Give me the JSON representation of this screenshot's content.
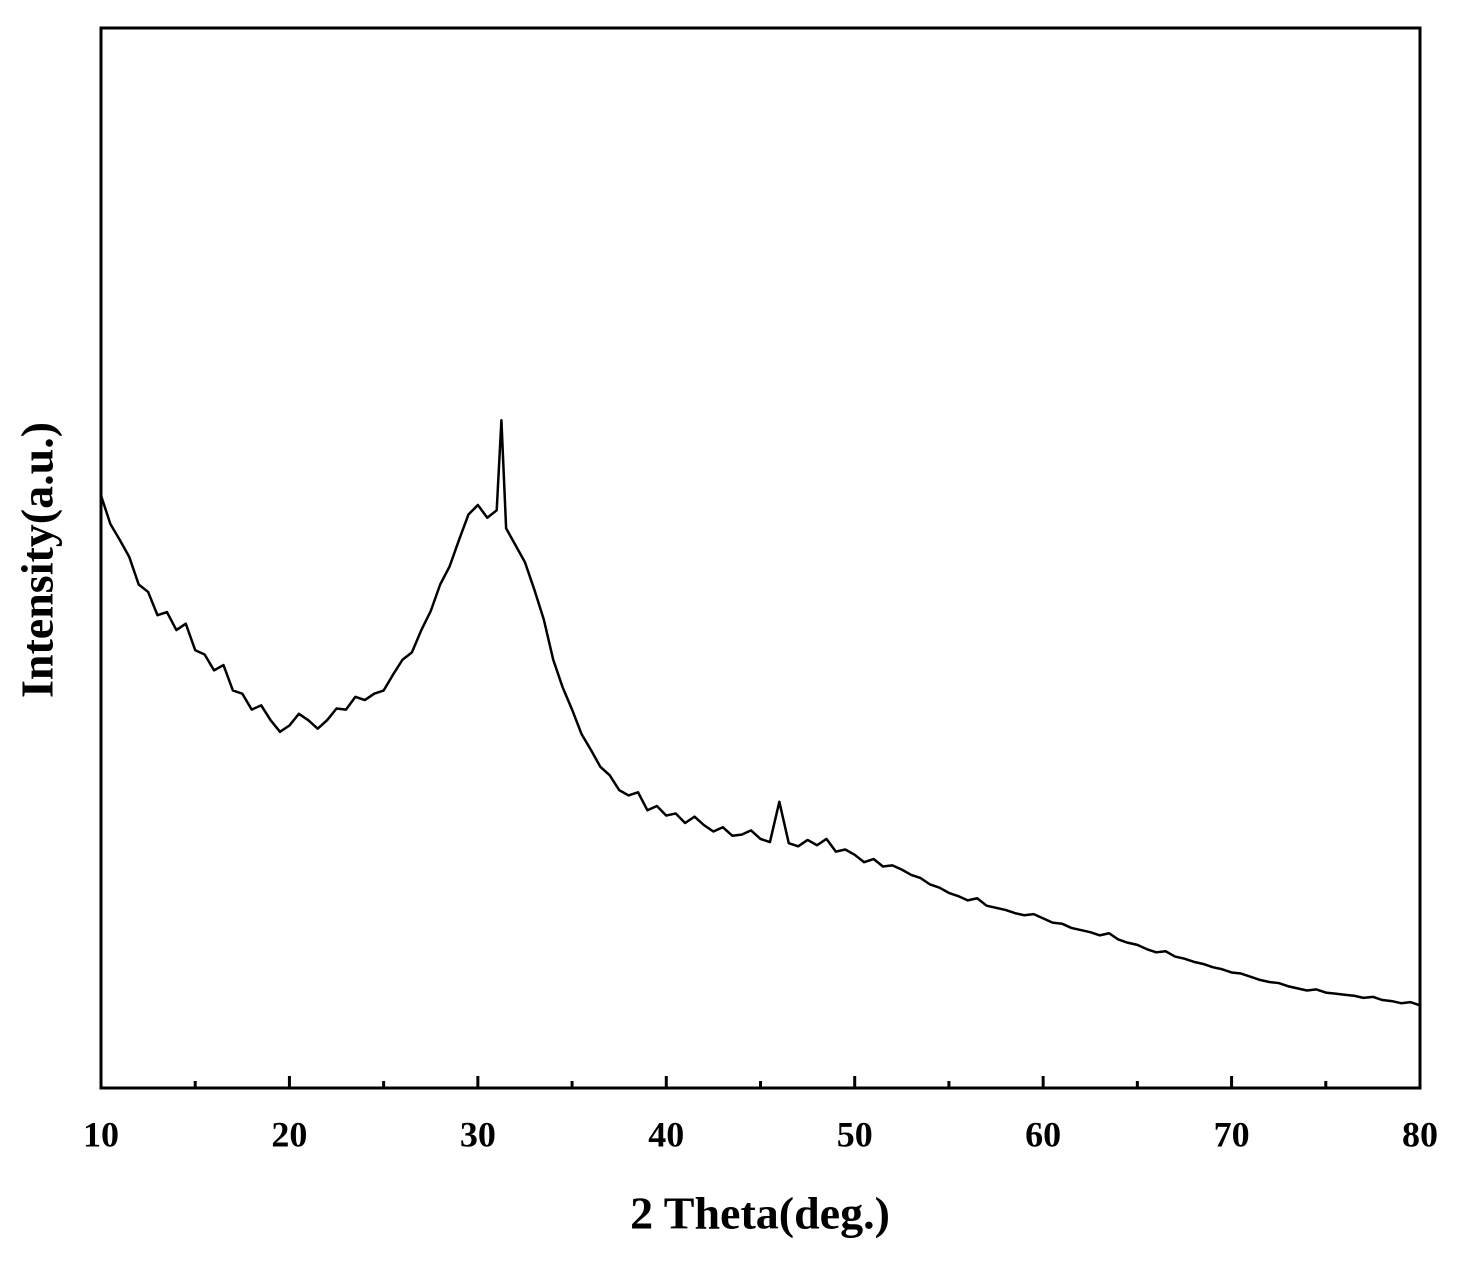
{
  "chart_data": {
    "type": "line",
    "xlabel": "2 Theta(deg.)",
    "ylabel": "Intensity(a.u.)",
    "color": "#000000",
    "xlim": [
      10,
      80
    ],
    "xticks": [
      10,
      20,
      30,
      40,
      50,
      60,
      70,
      80
    ],
    "xminorticks": [
      15,
      25,
      35,
      45,
      55,
      65,
      75
    ],
    "ylim": [
      0,
      100
    ],
    "x": [
      10,
      10.5,
      11,
      11.5,
      12,
      12.5,
      13,
      13.5,
      14,
      14.5,
      15,
      15.5,
      16,
      16.5,
      17,
      17.5,
      18,
      18.5,
      19,
      19.5,
      20,
      20.5,
      21,
      21.5,
      22,
      22.5,
      23,
      23.5,
      24,
      24.5,
      25,
      25.5,
      26,
      26.5,
      27,
      27.5,
      28,
      28.5,
      29,
      29.5,
      30,
      30.5,
      31,
      31.25,
      31.5,
      32,
      32.5,
      33,
      33.5,
      34,
      34.5,
      35,
      35.5,
      36,
      36.5,
      37,
      37.5,
      38,
      38.5,
      39,
      39.5,
      40,
      40.5,
      41,
      41.5,
      42,
      42.5,
      43,
      43.5,
      44,
      44.5,
      45,
      45.5,
      46,
      46.5,
      47,
      47.5,
      48,
      48.5,
      49,
      49.5,
      50,
      50.5,
      51,
      51.5,
      52,
      52.5,
      53,
      53.5,
      54,
      54.5,
      55,
      55.5,
      56,
      56.5,
      57,
      57.5,
      58,
      58.5,
      59,
      59.5,
      60,
      60.5,
      61,
      61.5,
      62,
      62.5,
      63,
      63.5,
      64,
      64.5,
      65,
      65.5,
      66,
      66.5,
      67,
      67.5,
      68,
      68.5,
      69,
      69.5,
      70,
      70.5,
      71,
      71.5,
      72,
      72.5,
      73,
      73.5,
      74,
      74.5,
      75,
      75.5,
      76,
      76.5,
      77,
      77.5,
      78,
      78.5,
      79,
      79.5,
      80
    ],
    "values": [
      55.9,
      53.2,
      51.7,
      50.1,
      47.5,
      46.8,
      44.6,
      44.9,
      43.2,
      43.8,
      41.3,
      40.9,
      39.4,
      39.9,
      37.5,
      37.2,
      35.7,
      36.1,
      34.7,
      33.6,
      34.2,
      35.3,
      34.7,
      33.9,
      34.7,
      35.8,
      35.7,
      36.9,
      36.6,
      37.2,
      37.5,
      39.0,
      40.4,
      41.1,
      43.2,
      45.0,
      47.5,
      49.2,
      51.7,
      54.1,
      55.0,
      53.8,
      54.5,
      63.0,
      52.8,
      51.2,
      49.6,
      47.0,
      44.2,
      40.4,
      37.8,
      35.7,
      33.4,
      31.9,
      30.3,
      29.5,
      28.1,
      27.6,
      27.9,
      26.2,
      26.6,
      25.7,
      25.9,
      25.0,
      25.6,
      24.8,
      24.2,
      24.6,
      23.8,
      23.9,
      24.3,
      23.5,
      23.2,
      27.0,
      23.1,
      22.8,
      23.4,
      22.9,
      23.5,
      22.3,
      22.5,
      22.0,
      21.3,
      21.6,
      20.9,
      21.0,
      20.6,
      20.1,
      19.8,
      19.2,
      18.9,
      18.4,
      18.1,
      17.7,
      17.9,
      17.2,
      17.0,
      16.8,
      16.5,
      16.3,
      16.4,
      16.0,
      15.6,
      15.5,
      15.1,
      14.9,
      14.7,
      14.4,
      14.6,
      14.0,
      13.7,
      13.5,
      13.1,
      12.8,
      12.9,
      12.4,
      12.2,
      11.9,
      11.7,
      11.4,
      11.2,
      10.9,
      10.8,
      10.5,
      10.2,
      10.0,
      9.9,
      9.6,
      9.4,
      9.2,
      9.3,
      9.0,
      8.9,
      8.8,
      8.7,
      8.5,
      8.6,
      8.3,
      8.2,
      8.0,
      8.1,
      7.8
    ]
  }
}
